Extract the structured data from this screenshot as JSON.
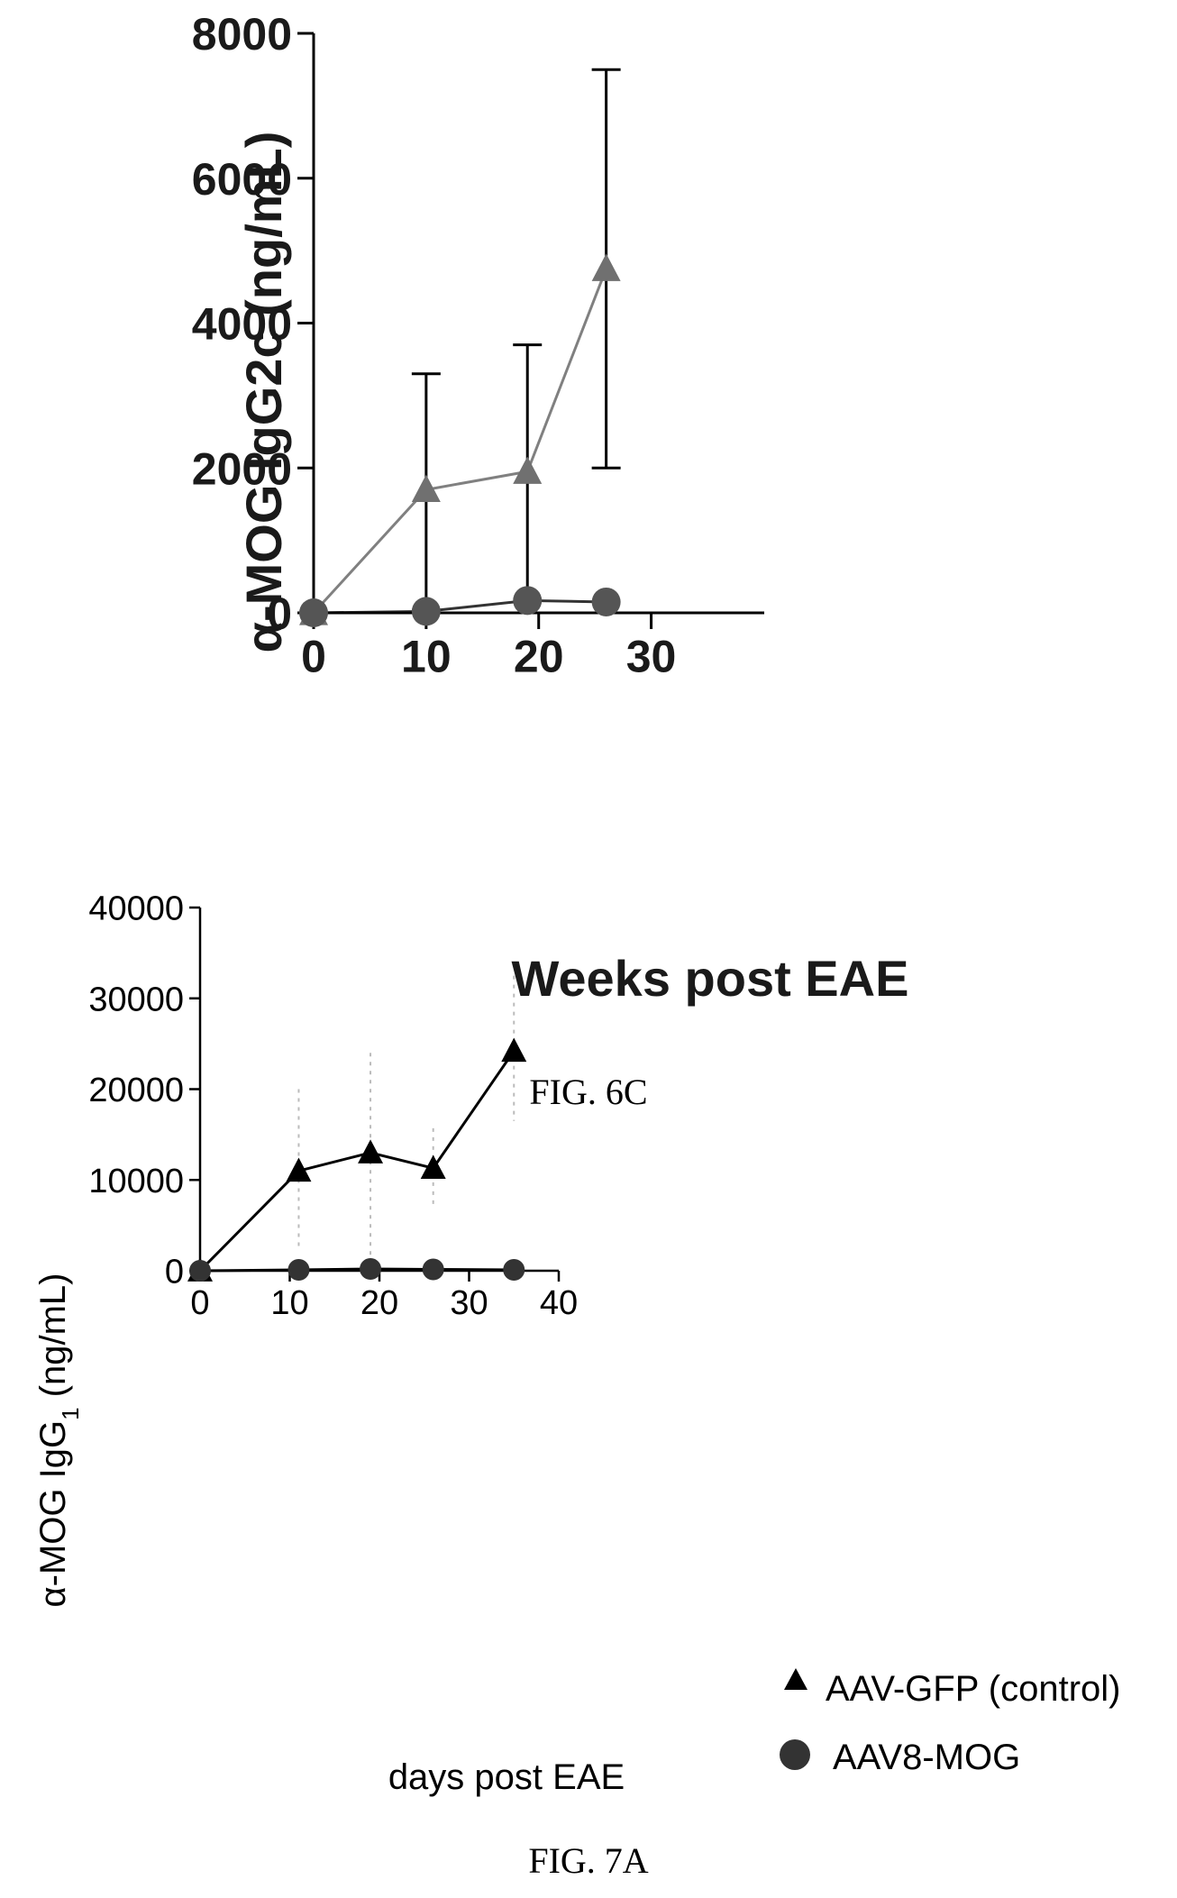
{
  "figure_6c": {
    "caption": "FIG. 6C"
  },
  "figure_7a": {
    "caption": "FIG. 7A"
  },
  "colors": {
    "fig6c_line": "#808080",
    "fig6c_marker": "#555555",
    "fig7a_marker": "#000000",
    "fig7a_errorbar": "#bbbbbb"
  },
  "chart_data": [
    {
      "type": "line",
      "ylabel": "α-MOG IgG2c (ng/mL)",
      "xlabel": "Weeks post EAE",
      "xlim": [
        0,
        35
      ],
      "ylim": [
        0,
        8000
      ],
      "x_ticks": [
        "0",
        "10",
        "20",
        "30"
      ],
      "y_ticks": [
        "0",
        "2000",
        "4000",
        "6000",
        "8000"
      ],
      "grid": false,
      "series": [
        {
          "marker": "triangle",
          "x": [
            0,
            10,
            19,
            26
          ],
          "y": [
            0,
            1700,
            1950,
            4750
          ],
          "error_upper": [
            0,
            3300,
            3700,
            7500
          ],
          "error_lower": [
            0,
            0,
            0,
            2000
          ]
        },
        {
          "marker": "circle",
          "x": [
            0,
            10,
            19,
            26
          ],
          "y": [
            0,
            20,
            170,
            150
          ]
        }
      ]
    },
    {
      "type": "line",
      "ylabel": "α-MOG IgG",
      "ylabel_subscript": "1",
      "ylabel_unit": " (ng/mL)",
      "xlabel": "days post EAE",
      "xlim": [
        0,
        40
      ],
      "ylim": [
        0,
        40000
      ],
      "x_ticks": [
        "0",
        "10",
        "20",
        "30",
        "40"
      ],
      "y_ticks": [
        "0",
        "10000",
        "20000",
        "30000",
        "40000"
      ],
      "grid": false,
      "legend_position": "right",
      "series": [
        {
          "name": "AAV-GFP (control)",
          "marker": "triangle",
          "x": [
            0,
            11,
            19,
            26,
            35
          ],
          "y": [
            0,
            11000,
            13000,
            11300,
            24200
          ],
          "error_upper": [
            0,
            20000,
            24000,
            15700,
            32500
          ],
          "error_lower": [
            0,
            2500,
            0,
            7000,
            16500
          ]
        },
        {
          "name": "AAV8-MOG",
          "marker": "circle",
          "x": [
            0,
            11,
            19,
            26,
            35
          ],
          "y": [
            0,
            100,
            200,
            150,
            100
          ]
        }
      ]
    }
  ]
}
